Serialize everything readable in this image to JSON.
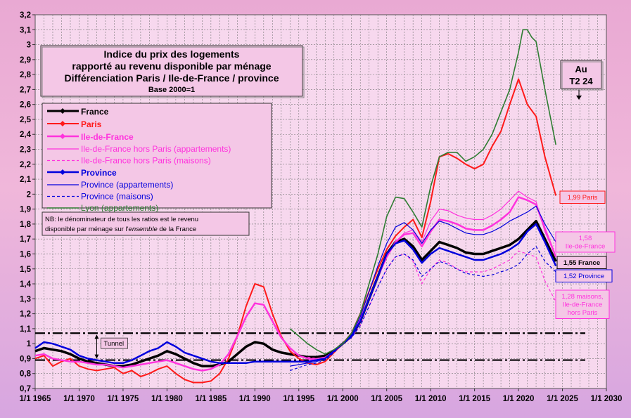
{
  "chart_data": {
    "type": "line",
    "title": [
      "Indice du prix des logements",
      "rapporté au revenu disponible par ménage",
      "Différenciation Paris / Ile-de-France / province"
    ],
    "subtitle": "Base 2000=1",
    "xlim": [
      1965,
      2030
    ],
    "ylim": [
      0.7,
      3.2
    ],
    "x_ticks": [
      1965,
      1970,
      1975,
      1980,
      1985,
      1990,
      1995,
      2000,
      2005,
      2010,
      2015,
      2020,
      2025,
      2030
    ],
    "x_tick_labels": [
      "1/1 1965",
      "1/1 1970",
      "1/1 1975",
      "1/1 1980",
      "1/1 1985",
      "1/1 1990",
      "1/1 1995",
      "1/1 2000",
      "1/1 2005",
      "1/1 2010",
      "1/1 2015",
      "1/1 2020",
      "1/1 2025",
      "1/1 2030"
    ],
    "y_ticks": [
      0.7,
      0.8,
      0.9,
      1.0,
      1.1,
      1.2,
      1.3,
      1.4,
      1.5,
      1.6,
      1.7,
      1.8,
      1.9,
      2.0,
      2.1,
      2.2,
      2.3,
      2.4,
      2.5,
      2.6,
      2.7,
      2.8,
      2.9,
      3.0,
      3.1,
      3.2
    ],
    "y_tick_labels": [
      "0,7",
      "0,8",
      "0,9",
      "1",
      "1,1",
      "1,2",
      "1,3",
      "1,4",
      "1,5",
      "1,6",
      "1,7",
      "1,8",
      "1,9",
      "2",
      "2,1",
      "2,2",
      "2,3",
      "2,4",
      "2,5",
      "2,6",
      "2,7",
      "2,8",
      "2,9",
      "3",
      "3,1",
      "3,2"
    ],
    "tunnel": {
      "upper": 1.07,
      "lower": 0.89,
      "label": "Tunnel"
    },
    "note": [
      "NB: le dénominateur de tous les ratios est le revenu",
      "disponible par ménage sur l'",
      "ensemble",
      " de la France"
    ],
    "period_label": [
      "Au",
      "T2 24"
    ],
    "series": [
      {
        "name": "France",
        "color": "#000000",
        "width": 3.5,
        "dash": "",
        "marker": true,
        "legend_bold": true,
        "legend_size": 14,
        "x": [
          1965,
          1966,
          1967,
          1968,
          1969,
          1970,
          1971,
          1972,
          1973,
          1974,
          1975,
          1976,
          1977,
          1978,
          1979,
          1980,
          1981,
          1982,
          1983,
          1984,
          1985,
          1986,
          1987,
          1988,
          1989,
          1990,
          1991,
          1992,
          1993,
          1994,
          1995,
          1996,
          1997,
          1998,
          1999,
          2000,
          2001,
          2002,
          2003,
          2004,
          2005,
          2006,
          2007,
          2008,
          2009,
          2010,
          2011,
          2012,
          2013,
          2014,
          2015,
          2016,
          2017,
          2018,
          2019,
          2020,
          2021,
          2022,
          2023,
          2024.25
        ],
        "y": [
          0.95,
          0.97,
          0.96,
          0.95,
          0.93,
          0.9,
          0.88,
          0.87,
          0.86,
          0.85,
          0.85,
          0.86,
          0.88,
          0.9,
          0.92,
          0.95,
          0.93,
          0.9,
          0.87,
          0.85,
          0.85,
          0.86,
          0.88,
          0.93,
          0.98,
          1.01,
          1.0,
          0.96,
          0.94,
          0.93,
          0.92,
          0.91,
          0.91,
          0.92,
          0.95,
          1.0,
          1.05,
          1.15,
          1.3,
          1.45,
          1.6,
          1.68,
          1.7,
          1.65,
          1.56,
          1.62,
          1.68,
          1.66,
          1.64,
          1.61,
          1.6,
          1.6,
          1.62,
          1.64,
          1.66,
          1.7,
          1.76,
          1.82,
          1.7,
          1.55
        ]
      },
      {
        "name": "Paris",
        "color": "#ff1a1a",
        "width": 2,
        "dash": "",
        "marker": true,
        "legend_bold": true,
        "legend_size": 14,
        "x": [
          1965,
          1966,
          1967,
          1968,
          1969,
          1970,
          1971,
          1972,
          1973,
          1974,
          1975,
          1976,
          1977,
          1978,
          1979,
          1980,
          1981,
          1982,
          1983,
          1984,
          1985,
          1986,
          1987,
          1988,
          1989,
          1990,
          1991,
          1992,
          1993,
          1994,
          1995,
          1996,
          1997,
          1998,
          1999,
          2000,
          2001,
          2002,
          2003,
          2004,
          2005,
          2006,
          2007,
          2008,
          2009,
          2010,
          2011,
          2012,
          2013,
          2014,
          2015,
          2016,
          2017,
          2018,
          2019,
          2020,
          2021,
          2022,
          2023,
          2024.25
        ],
        "y": [
          0.9,
          0.92,
          0.85,
          0.88,
          0.9,
          0.85,
          0.83,
          0.82,
          0.83,
          0.84,
          0.8,
          0.82,
          0.78,
          0.8,
          0.83,
          0.85,
          0.8,
          0.76,
          0.74,
          0.74,
          0.75,
          0.8,
          0.9,
          1.05,
          1.25,
          1.4,
          1.38,
          1.2,
          1.05,
          0.95,
          0.9,
          0.87,
          0.86,
          0.88,
          0.94,
          1.0,
          1.07,
          1.2,
          1.35,
          1.5,
          1.63,
          1.72,
          1.78,
          1.83,
          1.71,
          1.95,
          2.25,
          2.27,
          2.24,
          2.2,
          2.17,
          2.2,
          2.32,
          2.42,
          2.6,
          2.77,
          2.6,
          2.52,
          2.25,
          1.99
        ]
      },
      {
        "name": "Ile-de-France",
        "color": "#ff33dd",
        "width": 2.5,
        "dash": "",
        "marker": true,
        "legend_bold": true,
        "legend_size": 14,
        "x": [
          1965,
          1966,
          1967,
          1968,
          1969,
          1970,
          1971,
          1972,
          1973,
          1974,
          1975,
          1976,
          1977,
          1978,
          1979,
          1980,
          1981,
          1982,
          1983,
          1984,
          1985,
          1986,
          1987,
          1988,
          1989,
          1990,
          1991,
          1992,
          1993,
          1994,
          1995,
          1996,
          1997,
          1998,
          1999,
          2000,
          2001,
          2002,
          2003,
          2004,
          2005,
          2006,
          2007,
          2008,
          2009,
          2010,
          2011,
          2012,
          2013,
          2014,
          2015,
          2016,
          2017,
          2018,
          2019,
          2020,
          2021,
          2022,
          2023,
          2024.25
        ],
        "y": [
          0.92,
          0.93,
          0.9,
          0.89,
          0.88,
          0.88,
          0.87,
          0.86,
          0.86,
          0.85,
          0.84,
          0.85,
          0.86,
          0.87,
          0.88,
          0.89,
          0.87,
          0.85,
          0.83,
          0.82,
          0.83,
          0.86,
          0.93,
          1.05,
          1.18,
          1.27,
          1.26,
          1.15,
          1.04,
          0.97,
          0.92,
          0.9,
          0.89,
          0.9,
          0.95,
          1.0,
          1.05,
          1.16,
          1.3,
          1.45,
          1.58,
          1.68,
          1.73,
          1.74,
          1.65,
          1.75,
          1.83,
          1.82,
          1.8,
          1.77,
          1.76,
          1.76,
          1.79,
          1.83,
          1.88,
          1.98,
          1.96,
          1.93,
          1.77,
          1.58
        ]
      },
      {
        "name": "Ile-de-France hors Paris (appartements)",
        "color": "#ff33dd",
        "width": 1.2,
        "dash": "",
        "marker": false,
        "legend_bold": false,
        "legend_size": 12,
        "x": [
          1996,
          1997,
          1998,
          1999,
          2000,
          2001,
          2002,
          2003,
          2004,
          2005,
          2006,
          2007,
          2008,
          2009,
          2010,
          2011,
          2012,
          2013,
          2014,
          2015,
          2016,
          2017,
          2018,
          2019,
          2020,
          2021,
          2022,
          2023,
          2024.25
        ],
        "y": [
          0.9,
          0.9,
          0.91,
          0.95,
          1.0,
          1.05,
          1.15,
          1.3,
          1.45,
          1.58,
          1.68,
          1.74,
          1.76,
          1.68,
          1.82,
          1.9,
          1.89,
          1.86,
          1.84,
          1.83,
          1.83,
          1.86,
          1.9,
          1.96,
          2.02,
          1.98,
          1.95,
          1.75,
          1.58
        ]
      },
      {
        "name": "Ile-de-France hors Paris (maisons)",
        "color": "#ff33dd",
        "width": 1.2,
        "dash": "4,3",
        "marker": false,
        "legend_bold": false,
        "legend_size": 12,
        "x": [
          1996,
          1997,
          1998,
          1999,
          2000,
          2001,
          2002,
          2003,
          2004,
          2005,
          2006,
          2007,
          2008,
          2009,
          2010,
          2011,
          2012,
          2013,
          2014,
          2015,
          2016,
          2017,
          2018,
          2019,
          2020,
          2021,
          2022,
          2023,
          2024.25
        ],
        "y": [
          0.91,
          0.9,
          0.91,
          0.95,
          1.0,
          1.04,
          1.12,
          1.25,
          1.38,
          1.5,
          1.58,
          1.6,
          1.55,
          1.4,
          1.5,
          1.56,
          1.54,
          1.5,
          1.48,
          1.48,
          1.48,
          1.5,
          1.53,
          1.56,
          1.62,
          1.6,
          1.58,
          1.42,
          1.28
        ]
      },
      {
        "name": "Province",
        "color": "#0000dd",
        "width": 2.5,
        "dash": "",
        "marker": true,
        "legend_bold": true,
        "legend_size": 14,
        "x": [
          1965,
          1966,
          1967,
          1968,
          1969,
          1970,
          1971,
          1972,
          1973,
          1974,
          1975,
          1976,
          1977,
          1978,
          1979,
          1980,
          1981,
          1982,
          1983,
          1984,
          1985,
          1986,
          1987,
          1988,
          1989,
          1990,
          1991,
          1992,
          1993,
          1994,
          1995,
          1996,
          1997,
          1998,
          1999,
          2000,
          2001,
          2002,
          2003,
          2004,
          2005,
          2006,
          2007,
          2008,
          2009,
          2010,
          2011,
          2012,
          2013,
          2014,
          2015,
          2016,
          2017,
          2018,
          2019,
          2020,
          2021,
          2022,
          2023,
          2024.25
        ],
        "y": [
          0.97,
          1.01,
          1.0,
          0.98,
          0.96,
          0.92,
          0.9,
          0.89,
          0.88,
          0.87,
          0.87,
          0.89,
          0.92,
          0.95,
          0.97,
          1.01,
          0.98,
          0.94,
          0.92,
          0.9,
          0.88,
          0.87,
          0.87,
          0.87,
          0.87,
          0.88,
          0.88,
          0.88,
          0.88,
          0.88,
          0.88,
          0.88,
          0.89,
          0.9,
          0.95,
          1.0,
          1.05,
          1.15,
          1.3,
          1.45,
          1.6,
          1.67,
          1.69,
          1.63,
          1.54,
          1.6,
          1.64,
          1.62,
          1.6,
          1.58,
          1.56,
          1.56,
          1.58,
          1.6,
          1.63,
          1.67,
          1.75,
          1.8,
          1.68,
          1.52
        ]
      },
      {
        "name": "Province (appartements)",
        "color": "#0000dd",
        "width": 1.2,
        "dash": "",
        "marker": false,
        "legend_bold": false,
        "legend_size": 12,
        "x": [
          1994,
          1995,
          1996,
          1997,
          1998,
          1999,
          2000,
          2001,
          2002,
          2003,
          2004,
          2005,
          2006,
          2007,
          2008,
          2009,
          2010,
          2011,
          2012,
          2013,
          2014,
          2015,
          2016,
          2017,
          2018,
          2019,
          2020,
          2021,
          2022,
          2023,
          2024.25
        ],
        "y": [
          0.85,
          0.86,
          0.87,
          0.88,
          0.9,
          0.95,
          1.0,
          1.06,
          1.18,
          1.35,
          1.52,
          1.67,
          1.78,
          1.81,
          1.76,
          1.67,
          1.76,
          1.82,
          1.8,
          1.77,
          1.74,
          1.73,
          1.73,
          1.75,
          1.78,
          1.82,
          1.85,
          1.88,
          1.92,
          1.8,
          1.68
        ]
      },
      {
        "name": "Province (maisons)",
        "color": "#0000dd",
        "width": 1.2,
        "dash": "4,3",
        "marker": false,
        "legend_bold": false,
        "legend_size": 12,
        "x": [
          1994,
          1995,
          1996,
          1997,
          1998,
          1999,
          2000,
          2001,
          2002,
          2003,
          2004,
          2005,
          2006,
          2007,
          2008,
          2009,
          2010,
          2011,
          2012,
          2013,
          2014,
          2015,
          2016,
          2017,
          2018,
          2019,
          2020,
          2021,
          2022,
          2023,
          2024.25
        ],
        "y": [
          0.82,
          0.84,
          0.86,
          0.87,
          0.89,
          0.94,
          1.0,
          1.04,
          1.12,
          1.25,
          1.38,
          1.5,
          1.58,
          1.6,
          1.56,
          1.45,
          1.5,
          1.55,
          1.53,
          1.5,
          1.47,
          1.46,
          1.45,
          1.46,
          1.48,
          1.5,
          1.53,
          1.6,
          1.65,
          1.55,
          1.48
        ]
      },
      {
        "name": "Lyon (appartements)",
        "color": "#2e7d32",
        "width": 1.6,
        "dash": "",
        "marker": false,
        "legend_bold": false,
        "legend_size": 12,
        "x": [
          1994,
          1995,
          1996,
          1997,
          1998,
          1999,
          2000,
          2001,
          2002,
          2003,
          2004,
          2005,
          2006,
          2007,
          2008,
          2009,
          2010,
          2011,
          2012,
          2013,
          2014,
          2015,
          2016,
          2017,
          2018,
          2019,
          2020,
          2020.5,
          2021,
          2021.5,
          2022,
          2023,
          2024.25
        ],
        "y": [
          1.1,
          1.05,
          1.0,
          0.96,
          0.93,
          0.96,
          1.0,
          1.07,
          1.2,
          1.4,
          1.6,
          1.85,
          1.98,
          1.97,
          1.88,
          1.78,
          2.05,
          2.25,
          2.28,
          2.28,
          2.22,
          2.25,
          2.3,
          2.4,
          2.55,
          2.7,
          2.95,
          3.1,
          3.1,
          3.05,
          3.02,
          2.7,
          2.33
        ]
      }
    ],
    "end_labels": [
      {
        "lines": [
          "1,99 Paris"
        ],
        "color": "#ff1a1a",
        "y": 1.99
      },
      {
        "lines": [
          "1,58",
          "Ile-de-France"
        ],
        "color": "#ff33dd",
        "y": 1.58
      },
      {
        "lines": [
          "1,55 France"
        ],
        "color": "#000000",
        "y": 1.55
      },
      {
        "lines": [
          "1,52 Province"
        ],
        "color": "#0000dd",
        "y": 1.52
      },
      {
        "lines": [
          "1,28 maisons,",
          "Ile-de-France",
          "hors Paris"
        ],
        "color": "#ff33dd",
        "y": 1.28
      }
    ]
  }
}
